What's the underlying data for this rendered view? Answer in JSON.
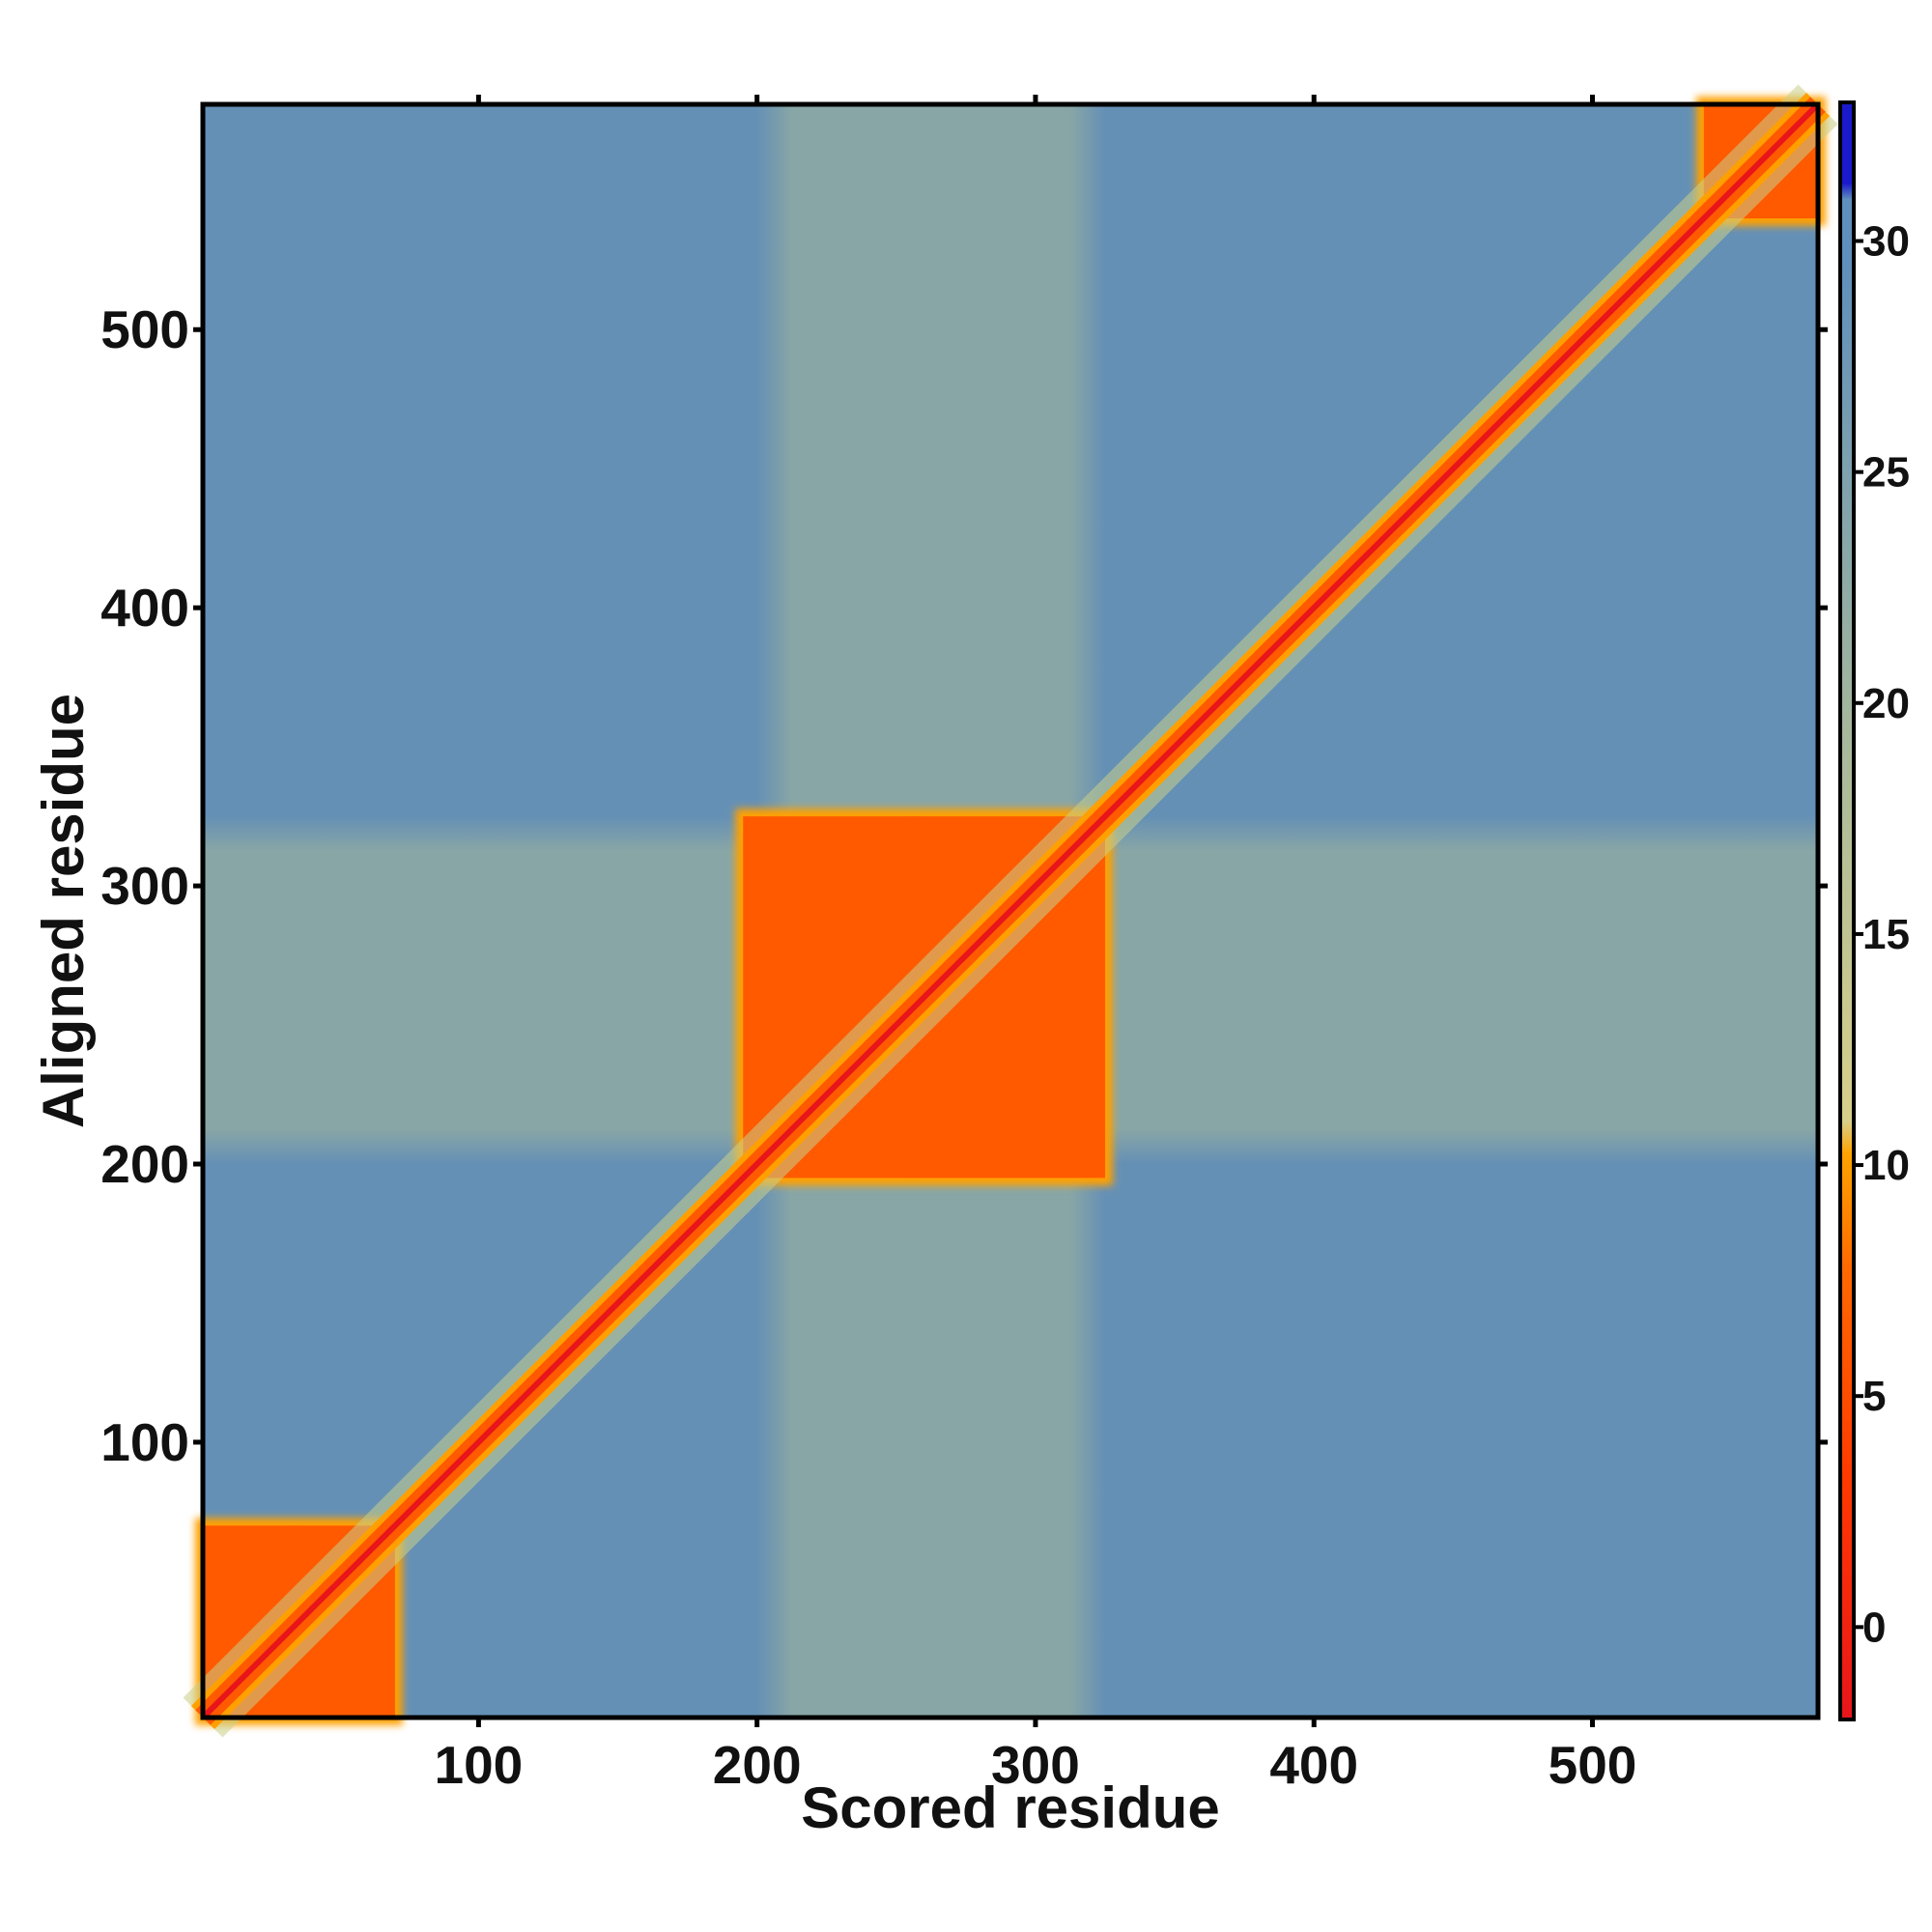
{
  "chart_data": {
    "type": "heatmap",
    "title": "",
    "xlabel": "Scored residue",
    "ylabel": "Aligned residue",
    "xlim": [
      1,
      581
    ],
    "ylim": [
      1,
      581
    ],
    "x_ticks": [
      100,
      200,
      300,
      400,
      500
    ],
    "y_ticks": [
      100,
      200,
      300,
      400,
      500
    ],
    "colorbar": {
      "range": [
        -2,
        33
      ],
      "ticks": [
        0,
        5,
        10,
        15,
        20,
        25,
        30
      ],
      "colors": {
        "low": "#e8151b",
        "orange": "#ff5a00",
        "amber": "#ffa000",
        "mid": "#c9cf8a",
        "high": "#5f8fbb",
        "max": "#1a1acc"
      }
    },
    "background_value": 28,
    "diagonal_band_value": 2,
    "domain_blocks": [
      {
        "from": 1,
        "to": 70,
        "value": 4
      },
      {
        "from": 195,
        "to": 325,
        "value": 4.5
      },
      {
        "from": 540,
        "to": 581,
        "value": 5
      }
    ],
    "faint_bands": [
      {
        "axis": "x",
        "from": 200,
        "to": 325,
        "value": 22
      },
      {
        "axis": "y",
        "from": 200,
        "to": 325,
        "value": 22
      }
    ]
  }
}
